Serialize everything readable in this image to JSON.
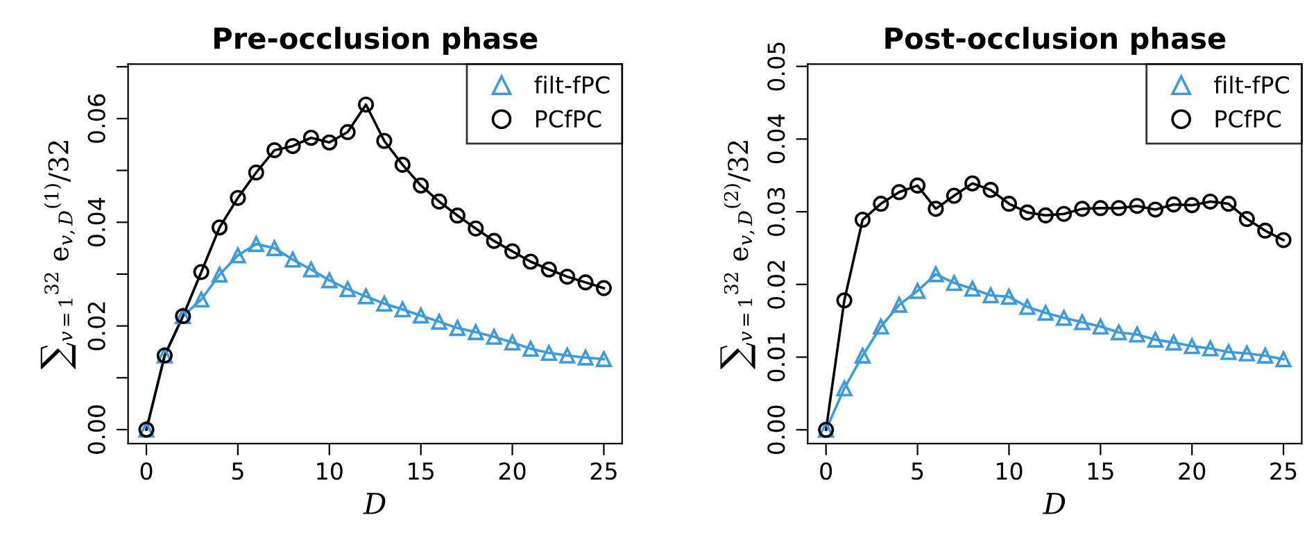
{
  "chart_data": [
    {
      "type": "line",
      "title": "Pre-occlusion phase",
      "xlabel": "D",
      "ylabel": "∑$_{v=1}$$^{32}$ e$_{v,D}$$^{(1)}$/32",
      "legend": "top right",
      "grid": false,
      "x": [
        0,
        1,
        2,
        3,
        4,
        5,
        6,
        7,
        8,
        9,
        10,
        11,
        12,
        13,
        14,
        15,
        16,
        17,
        18,
        19,
        20,
        21,
        22,
        23,
        24,
        25
      ],
      "xlim": [
        -1,
        26
      ],
      "xticks": [
        0,
        5,
        10,
        15,
        20,
        25
      ],
      "ylim": [
        -0.0027,
        0.0705
      ],
      "yticks": [
        {
          "value": 0.0,
          "label": "0.00"
        },
        {
          "value": 0.01,
          "label": null
        },
        0.02,
        {
          "value": 0.03,
          "label": null
        },
        0.04,
        {
          "value": 0.05,
          "label": null
        },
        0.06,
        {
          "value": 0.07,
          "label": null
        }
      ],
      "series": [
        {
          "name": "filt-fPC",
          "color": "#3a9be0",
          "marker": "triangle",
          "values": [
            0,
            0.0143,
            0.0219,
            0.0251,
            0.0299,
            0.0336,
            0.0358,
            0.035,
            0.0328,
            0.0309,
            0.0288,
            0.0271,
            0.0257,
            0.0243,
            0.0232,
            0.022,
            0.0208,
            0.0196,
            0.0188,
            0.0179,
            0.0168,
            0.0156,
            0.0148,
            0.0143,
            0.0139,
            0.0136
          ]
        },
        {
          "name": "PCfPC",
          "color": "#000000",
          "marker": "circle",
          "values": [
            0,
            0.0143,
            0.0219,
            0.0304,
            0.039,
            0.0447,
            0.0496,
            0.0539,
            0.0547,
            0.0563,
            0.0554,
            0.0574,
            0.0627,
            0.0557,
            0.0511,
            0.0471,
            0.044,
            0.0413,
            0.0388,
            0.0364,
            0.0344,
            0.0324,
            0.0309,
            0.0295,
            0.0284,
            0.0273
          ]
        }
      ]
    },
    {
      "type": "line",
      "title": "Post-occlusion phase",
      "xlabel": "D",
      "ylabel": "∑$_{v=1}$$^{32}$ e$_{v,D}$$^{(2)}$/32",
      "legend": "top right",
      "grid": false,
      "x": [
        0,
        1,
        2,
        3,
        4,
        5,
        6,
        7,
        8,
        9,
        10,
        11,
        12,
        13,
        14,
        15,
        16,
        17,
        18,
        19,
        20,
        21,
        22,
        23,
        24,
        25
      ],
      "xlim": [
        -1,
        26
      ],
      "xticks": [
        0,
        5,
        10,
        15,
        20,
        25
      ],
      "ylim": [
        -0.0019,
        0.0503
      ],
      "yticks": [
        {
          "value": 0.0,
          "label": "0.00"
        },
        0.01,
        0.02,
        0.03,
        0.04,
        0.05
      ],
      "series": [
        {
          "name": "filt-fPC",
          "color": "#3a9be0",
          "marker": "triangle",
          "values": [
            0,
            0.0057,
            0.0102,
            0.0142,
            0.0172,
            0.0191,
            0.0214,
            0.0202,
            0.0194,
            0.0185,
            0.0183,
            0.0169,
            0.0161,
            0.0154,
            0.0148,
            0.0142,
            0.0134,
            0.0131,
            0.0124,
            0.012,
            0.0115,
            0.0112,
            0.0107,
            0.0105,
            0.0102,
            0.0097
          ]
        },
        {
          "name": "PCfPC",
          "color": "#000000",
          "marker": "circle",
          "values": [
            0,
            0.0178,
            0.0289,
            0.0311,
            0.0327,
            0.0336,
            0.0304,
            0.0322,
            0.0339,
            0.033,
            0.0311,
            0.0299,
            0.0295,
            0.0297,
            0.0304,
            0.0305,
            0.0305,
            0.0308,
            0.0303,
            0.031,
            0.0309,
            0.0314,
            0.0311,
            0.029,
            0.0274,
            0.0261
          ]
        }
      ]
    }
  ]
}
